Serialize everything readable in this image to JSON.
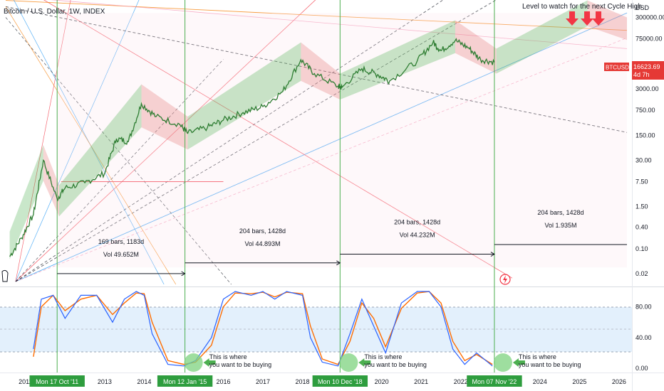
{
  "header": {
    "title": "Bitcoin / U.S. Dollar, 1W, INDEX",
    "annotation_top": "Level to watch for the next Cycle High"
  },
  "price_axis": {
    "unit": "USD",
    "ticks": [
      "300000.00",
      "75000.00",
      "3000.00",
      "750.00",
      "150.00",
      "30.00",
      "7.50",
      "1.50",
      "0.40",
      "0.10",
      "0.02"
    ],
    "price_label": "16623.69",
    "price_sublabel": "4d 7h",
    "symbol_badge": "BTCUSD"
  },
  "osc_axis": {
    "ticks": [
      "80.00",
      "40.00",
      "0.00"
    ]
  },
  "time_axis": {
    "ticks": [
      "2011",
      "2013",
      "2014",
      "2016",
      "2017",
      "2018",
      "2020",
      "2021",
      "2022",
      "2024",
      "2025",
      "2026"
    ],
    "highlighted": [
      "Mon 17 Oct '11",
      "Mon 12 Jan '15",
      "Mon 10 Dec '18",
      "Mon 07 Nov '22"
    ]
  },
  "measures": [
    {
      "bars": "169 bars, 1183d",
      "vol": "Vol 49.652M"
    },
    {
      "bars": "204 bars, 1428d",
      "vol": "Vol 44.893M"
    },
    {
      "bars": "204 bars, 1428d",
      "vol": "Vol 44.232M"
    },
    {
      "bars": "204 bars, 1428d",
      "vol": "Vol 1.935M"
    }
  ],
  "buy_notes": [
    {
      "line1": "This is where",
      "line2": "you want to be buying"
    },
    {
      "line1": "This is where",
      "line2": "you want to be buying"
    },
    {
      "line1": "This is where",
      "line2": "you want to be buying"
    }
  ],
  "colors": {
    "bull_channel": "#4caf50",
    "bear_channel": "#e57373",
    "price": "#2e7d32",
    "badge": "#e53935",
    "osc_k": "#2962ff",
    "osc_d": "#ff6d00",
    "cycle_line": "#4caf50",
    "time_label_bg": "#2e9d3e"
  },
  "chart_data": {
    "type": "line",
    "title": "Bitcoin / U.S. Dollar, 1W, INDEX",
    "y_scale": "log",
    "ylim": [
      0.01,
      700000
    ],
    "xlim": [
      2010.5,
      2026.2
    ],
    "price_series": {
      "name": "BTCUSD",
      "x": [
        2010.6,
        2010.9,
        2011.2,
        2011.45,
        2011.8,
        2012.0,
        2012.5,
        2013.0,
        2013.3,
        2013.6,
        2013.93,
        2014.3,
        2014.9,
        2015.1,
        2015.6,
        2016.0,
        2016.5,
        2017.0,
        2017.5,
        2017.96,
        2018.3,
        2018.9,
        2019.0,
        2019.5,
        2019.9,
        2020.2,
        2020.9,
        2021.3,
        2021.5,
        2021.86,
        2022.2,
        2022.5,
        2022.85
      ],
      "y": [
        0.06,
        0.2,
        0.9,
        30,
        2.5,
        5,
        7,
        13,
        120,
        100,
        1150,
        500,
        300,
        170,
        250,
        400,
        650,
        950,
        2500,
        19500,
        8000,
        3500,
        3300,
        11000,
        7500,
        5000,
        18000,
        60000,
        35000,
        68000,
        42000,
        20000,
        16600
      ]
    },
    "oscillator": {
      "ylim": [
        0,
        100
      ],
      "levels": [
        80,
        50,
        20
      ],
      "series": [
        {
          "name": "%K",
          "x": [
            2011.2,
            2011.4,
            2011.7,
            2012.0,
            2012.4,
            2012.8,
            2013.2,
            2013.5,
            2013.8,
            2014.0,
            2014.2,
            2014.6,
            2015.0,
            2015.3,
            2015.7,
            2016.0,
            2016.3,
            2016.7,
            2017.0,
            2017.3,
            2017.6,
            2018.0,
            2018.2,
            2018.5,
            2018.9,
            2019.2,
            2019.5,
            2019.8,
            2020.1,
            2020.5,
            2020.9,
            2021.2,
            2021.5,
            2021.8,
            2022.1,
            2022.4,
            2022.8
          ],
          "values": [
            25,
            90,
            95,
            65,
            95,
            95,
            60,
            90,
            100,
            95,
            45,
            5,
            3,
            10,
            40,
            90,
            100,
            95,
            100,
            90,
            100,
            95,
            40,
            8,
            3,
            45,
            90,
            55,
            20,
            85,
            100,
            100,
            80,
            25,
            5,
            20,
            3
          ]
        },
        {
          "name": "%D",
          "x": [
            2011.2,
            2011.4,
            2011.7,
            2012.0,
            2012.4,
            2012.8,
            2013.2,
            2013.5,
            2013.8,
            2014.0,
            2014.2,
            2014.6,
            2015.0,
            2015.3,
            2015.7,
            2016.0,
            2016.3,
            2016.7,
            2017.0,
            2017.3,
            2017.6,
            2018.0,
            2018.2,
            2018.5,
            2018.9,
            2019.2,
            2019.5,
            2019.8,
            2020.1,
            2020.5,
            2020.9,
            2021.2,
            2021.5,
            2021.8,
            2022.1,
            2022.4,
            2022.8
          ],
          "values": [
            15,
            80,
            95,
            75,
            90,
            95,
            70,
            85,
            98,
            97,
            60,
            10,
            5,
            8,
            30,
            80,
            98,
            97,
            99,
            93,
            99,
            97,
            55,
            12,
            5,
            35,
            85,
            65,
            28,
            78,
            98,
            100,
            85,
            35,
            10,
            18,
            5
          ]
        }
      ]
    }
  }
}
